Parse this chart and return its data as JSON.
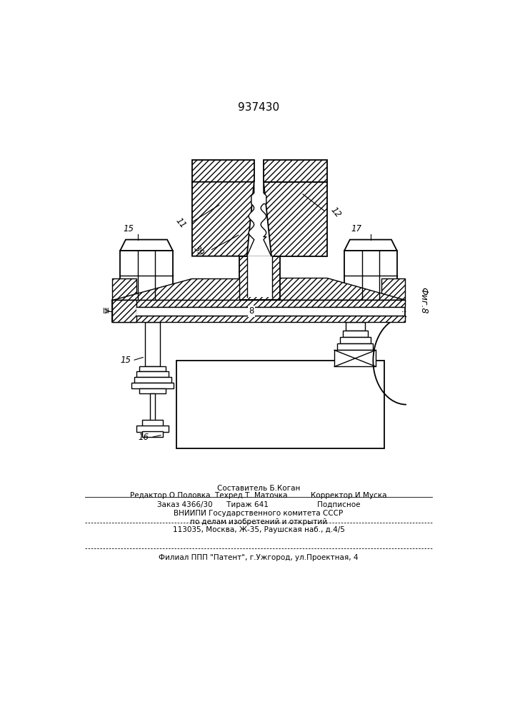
{
  "patent_number": "937430",
  "fig_label": "Фиг.8",
  "bg_color": "#ffffff",
  "line_color": "#000000",
  "footer": {
    "line1": "Составитель Б.Коган",
    "line2": "Редактор О.Половка  Техред Т. Маточка          Корректор И.Муска",
    "line3": "Заказ 4366/30      Тираж 641                     Подписное",
    "line4": "ВНИИПИ Государственного комитета СССР",
    "line5": "по делам изобретений и открытий",
    "line6": "113035, Москва, Ж-35, Раушская наб., д.4/5",
    "line7": "Филиал ППП \"Патент\", г.Ужгород, ул.Проектная, 4"
  }
}
